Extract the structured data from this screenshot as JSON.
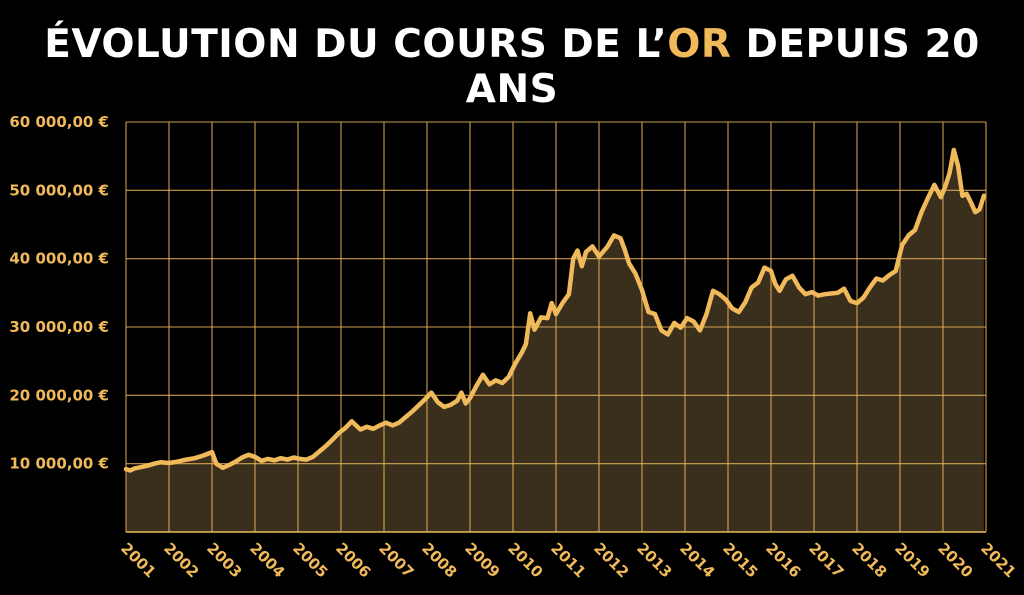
{
  "title": {
    "before": "ÉVOLUTION DU COURS DE L’",
    "accent": "OR",
    "after": " DEPUIS 20 ANS"
  },
  "colors": {
    "background": "#000000",
    "title": "#ffffff",
    "accent": "#f0b95a",
    "line": "#f0b95a",
    "area": "#3a2e1c",
    "grid": "#f0b95a"
  },
  "chart_data": {
    "type": "area",
    "title": "ÉVOLUTION DU COURS DE L’OR DEPUIS 20 ANS",
    "xlabel": "",
    "ylabel": "",
    "unit": "€",
    "xlim": [
      2001,
      2021
    ],
    "ylim": [
      0,
      60000
    ],
    "grid": true,
    "x_ticks": [
      "2001",
      "2002",
      "2003",
      "2004",
      "2005",
      "2006",
      "2007",
      "2008",
      "2009",
      "2010",
      "2011",
      "2012",
      "2013",
      "2014",
      "2015",
      "2016",
      "2017",
      "2018",
      "2019",
      "2020",
      "2021"
    ],
    "y_ticks": [
      "10 000,00 €",
      "20 000,00 €",
      "30 000,00 €",
      "40 000,00 €",
      "50 000,00 €",
      "60 000,00 €"
    ],
    "y_tick_values": [
      10000,
      20000,
      30000,
      40000,
      50000,
      60000
    ],
    "series": [
      {
        "x": [
          2001.0,
          2001.1,
          2001.2,
          2001.35,
          2001.5,
          2001.65,
          2001.8,
          2002.0,
          2002.2,
          2002.4,
          2002.6,
          2002.8,
          2003.0,
          2003.1,
          2003.25,
          2003.4,
          2003.55,
          2003.7,
          2003.85,
          2004.0,
          2004.15,
          2004.3,
          2004.45,
          2004.6,
          2004.75,
          2004.9,
          2005.05,
          2005.2,
          2005.35,
          2005.5,
          2005.65,
          2005.8,
          2005.95,
          2006.1,
          2006.25,
          2006.35,
          2006.45,
          2006.6,
          2006.75,
          2006.9,
          2007.05,
          2007.2,
          2007.35,
          2007.5,
          2007.65,
          2007.8,
          2007.95,
          2008.1,
          2008.25,
          2008.4,
          2008.55,
          2008.7,
          2008.8,
          2008.9,
          2009.0,
          2009.15,
          2009.3,
          2009.45,
          2009.6,
          2009.75,
          2009.9,
          2010.05,
          2010.2,
          2010.3,
          2010.4,
          2010.5,
          2010.65,
          2010.8,
          2010.9,
          2011.0,
          2011.15,
          2011.3,
          2011.4,
          2011.5,
          2011.6,
          2011.7,
          2011.85,
          2012.0,
          2012.2,
          2012.35,
          2012.5,
          2012.6,
          2012.7,
          2012.85,
          2013.0,
          2013.15,
          2013.3,
          2013.45,
          2013.6,
          2013.75,
          2013.9,
          2014.05,
          2014.2,
          2014.35,
          2014.5,
          2014.65,
          2014.8,
          2014.95,
          2015.1,
          2015.25,
          2015.4,
          2015.55,
          2015.7,
          2015.85,
          2016.0,
          2016.1,
          2016.2,
          2016.35,
          2016.5,
          2016.65,
          2016.8,
          2016.95,
          2017.1,
          2017.25,
          2017.4,
          2017.55,
          2017.7,
          2017.85,
          2018.0,
          2018.15,
          2018.3,
          2018.45,
          2018.6,
          2018.75,
          2018.9,
          2019.05,
          2019.2,
          2019.35,
          2019.5,
          2019.65,
          2019.8,
          2019.95,
          2020.05,
          2020.15,
          2020.25,
          2020.35,
          2020.45,
          2020.55,
          2020.65,
          2020.75,
          2020.85,
          2020.95
        ],
        "values": [
          9200,
          9000,
          9300,
          9500,
          9700,
          10000,
          10200,
          10100,
          10300,
          10600,
          10800,
          11200,
          11700,
          10000,
          9400,
          9800,
          10300,
          10900,
          11300,
          11000,
          10400,
          10700,
          10500,
          10800,
          10600,
          10900,
          10700,
          10600,
          11000,
          11800,
          12600,
          13500,
          14500,
          15200,
          16200,
          15600,
          15000,
          15400,
          15100,
          15600,
          16000,
          15600,
          16000,
          16800,
          17600,
          18500,
          19400,
          20400,
          19000,
          18300,
          18600,
          19200,
          20400,
          18800,
          19600,
          21400,
          23000,
          21600,
          22200,
          21800,
          22700,
          24600,
          26200,
          27500,
          32000,
          29600,
          31400,
          31300,
          33500,
          31900,
          33500,
          34800,
          40000,
          41200,
          38900,
          41000,
          41800,
          40300,
          41800,
          43400,
          43000,
          41300,
          39300,
          37800,
          35400,
          32200,
          31900,
          29500,
          28900,
          30600,
          29900,
          31300,
          30800,
          29500,
          31900,
          35300,
          34800,
          34000,
          32700,
          32200,
          33600,
          35800,
          36500,
          38700,
          38200,
          36300,
          35300,
          37000,
          37500,
          35800,
          34800,
          35100,
          34600,
          34800,
          34900,
          35000,
          35600,
          33800,
          33500,
          34300,
          35800,
          37100,
          36800,
          37600,
          38200,
          42000,
          43400,
          44200,
          46800,
          48900,
          50800,
          49000,
          50500,
          52500,
          55900,
          53600,
          49200,
          49500,
          48200,
          46800,
          47200,
          49200
        ]
      }
    ]
  }
}
